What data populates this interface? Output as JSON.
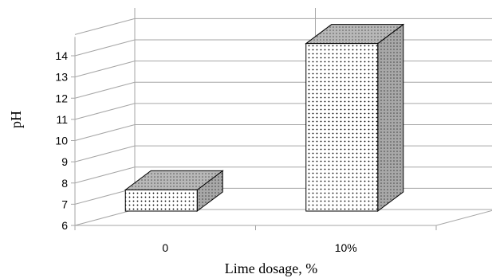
{
  "chart_data": {
    "type": "bar",
    "style": "3d-column",
    "categories": [
      "0",
      "10%"
    ],
    "values": [
      7.0,
      13.9
    ],
    "ylabel": "pH",
    "xlabel": "Lime dosage, %",
    "ylim": [
      6,
      14
    ],
    "yticks": [
      6,
      7,
      8,
      9,
      10,
      11,
      12,
      13,
      14
    ],
    "grid": true,
    "legend": "none",
    "colors": {
      "bar_fill": "#ffffff",
      "dots": "#000000",
      "side_fill": "#aaaaaa",
      "gridline": "#a6a6a6"
    }
  }
}
